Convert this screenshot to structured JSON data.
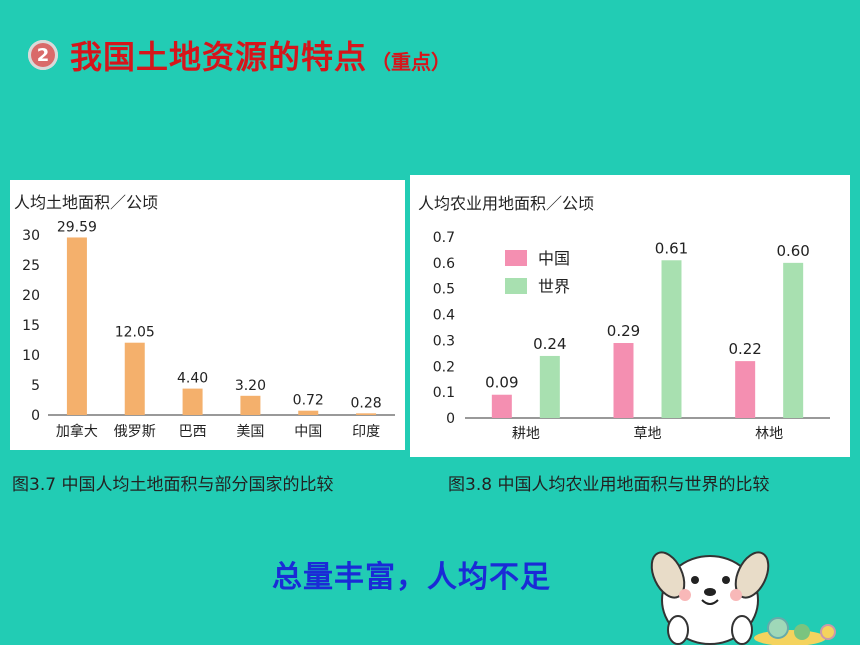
{
  "header": {
    "number": "2",
    "title": "我国土地资源的特点",
    "note": "（重点）"
  },
  "chart_data": [
    {
      "type": "bar",
      "title": "人均土地面积／公顷",
      "categories": [
        "加拿大",
        "俄罗斯",
        "巴西",
        "美国",
        "中国",
        "印度"
      ],
      "values": [
        29.59,
        12.05,
        4.4,
        3.2,
        0.72,
        0.28
      ],
      "value_labels": [
        "29.59",
        "12.05",
        "4.40",
        "3.20",
        "0.72",
        "0.28"
      ],
      "ylim": [
        0,
        30
      ],
      "yticks": [
        "0",
        "5",
        "10",
        "15",
        "20",
        "25",
        "30"
      ],
      "color": "#f4b06c",
      "caption": "图3.7 中国人均土地面积与部分国家的比较"
    },
    {
      "type": "bar",
      "title": "人均农业用地面积／公顷",
      "categories": [
        "耕地",
        "草地",
        "林地"
      ],
      "series": [
        {
          "name": "中国",
          "values": [
            0.09,
            0.29,
            0.22
          ],
          "labels": [
            "0.09",
            "0.29",
            "0.22"
          ],
          "color": "#f48fb1"
        },
        {
          "name": "世界",
          "values": [
            0.24,
            0.61,
            0.6
          ],
          "labels": [
            "0.24",
            "0.61",
            "0.60"
          ],
          "color": "#a8e0b0"
        }
      ],
      "ylim": [
        0,
        0.7
      ],
      "yticks": [
        "0",
        "0.1",
        "0.2",
        "0.3",
        "0.4",
        "0.5",
        "0.6",
        "0.7"
      ],
      "legend": "top-left",
      "caption": "图3.8 中国人均农业用地面积与世界的比较"
    }
  ],
  "slogan": "总量丰富，人均不足"
}
